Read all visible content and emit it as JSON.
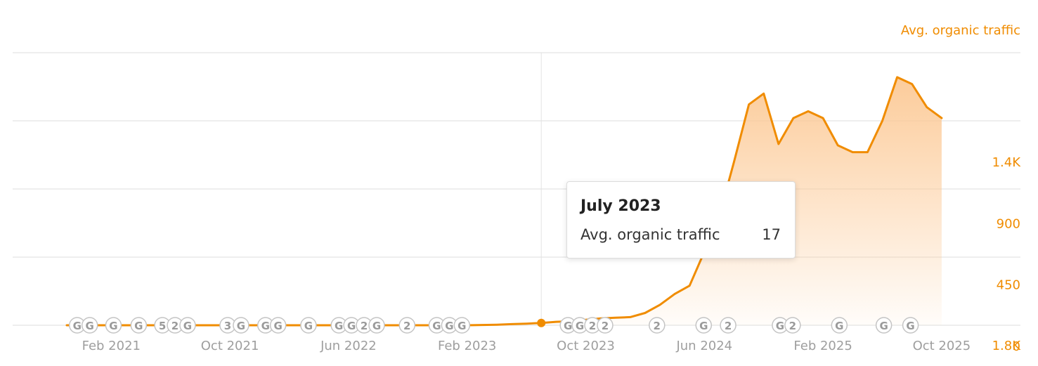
{
  "chart_data": {
    "type": "area",
    "series_label": "Avg. organic traffic",
    "x": [
      "Nov 2020",
      "Dec 2020",
      "Jan 2021",
      "Feb 2021",
      "Mar 2021",
      "Apr 2021",
      "May 2021",
      "Jun 2021",
      "Jul 2021",
      "Aug 2021",
      "Sep 2021",
      "Oct 2021",
      "Nov 2021",
      "Dec 2021",
      "Jan 2022",
      "Feb 2022",
      "Mar 2022",
      "Apr 2022",
      "May 2022",
      "Jun 2022",
      "Jul 2022",
      "Aug 2022",
      "Sep 2022",
      "Oct 2022",
      "Nov 2022",
      "Dec 2022",
      "Jan 2023",
      "Feb 2023",
      "Mar 2023",
      "Apr 2023",
      "May 2023",
      "Jun 2023",
      "Jul 2023",
      "Aug 2023",
      "Sep 2023",
      "Oct 2023",
      "Nov 2023",
      "Dec 2023",
      "Jan 2024",
      "Feb 2024",
      "Mar 2024",
      "Apr 2024",
      "May 2024",
      "Jun 2024",
      "Jul 2024",
      "Aug 2024",
      "Sep 2024",
      "Oct 2024",
      "Nov 2024",
      "Dec 2024",
      "Jan 2025",
      "Feb 2025",
      "Mar 2025",
      "Apr 2025",
      "May 2025",
      "Jun 2025",
      "Jul 2025",
      "Aug 2025",
      "Sep 2025",
      "Oct 2025"
    ],
    "values": [
      0,
      0,
      0,
      0,
      0,
      0,
      0,
      0,
      0,
      0,
      0,
      0,
      0,
      0,
      0,
      0,
      0,
      0,
      0,
      0,
      0,
      0,
      0,
      0,
      0,
      0,
      0,
      0,
      2,
      4,
      8,
      12,
      17,
      25,
      30,
      40,
      50,
      55,
      60,
      90,
      150,
      230,
      290,
      540,
      800,
      1200,
      1620,
      1700,
      1330,
      1520,
      1570,
      1520,
      1320,
      1270,
      1270,
      1500,
      1820,
      1770,
      1600,
      1520
    ],
    "highlight_index": 32,
    "x_tick_labels": [
      "Feb 2021",
      "Oct 2021",
      "Jun 2022",
      "Feb 2023",
      "Oct 2023",
      "Jun 2024",
      "Feb 2025",
      "Oct 2025"
    ],
    "x_tick_indices": [
      3,
      11,
      19,
      27,
      35,
      43,
      51,
      59
    ],
    "y_ticks": [
      0,
      450,
      900,
      1350,
      1800
    ],
    "y_tick_labels": [
      "0",
      "450",
      "900",
      "1.4K",
      "1.8K"
    ],
    "ylim": [
      0,
      2000
    ],
    "grid": true,
    "y_axis_position": "right",
    "colors": {
      "line": "#f08c00",
      "axis_text": "#f08c00",
      "x_tick_text": "#9e9e9e",
      "grid": "#e8e8e8",
      "fill": "#fcc995"
    },
    "annotations": [
      {
        "index": 0.7,
        "label": "G"
      },
      {
        "index": 1.55,
        "label": "G"
      },
      {
        "index": 3.15,
        "label": "G"
      },
      {
        "index": 4.85,
        "label": "G"
      },
      {
        "index": 6.45,
        "label": "5"
      },
      {
        "index": 7.3,
        "label": "2"
      },
      {
        "index": 8.15,
        "label": "G"
      },
      {
        "index": 10.85,
        "label": "3"
      },
      {
        "index": 11.75,
        "label": "G"
      },
      {
        "index": 13.4,
        "label": "G"
      },
      {
        "index": 14.25,
        "label": "G"
      },
      {
        "index": 16.3,
        "label": "G"
      },
      {
        "index": 18.35,
        "label": "G"
      },
      {
        "index": 19.2,
        "label": "G"
      },
      {
        "index": 20.05,
        "label": "2"
      },
      {
        "index": 20.9,
        "label": "G"
      },
      {
        "index": 22.95,
        "label": "2"
      },
      {
        "index": 24.95,
        "label": "G"
      },
      {
        "index": 25.8,
        "label": "G"
      },
      {
        "index": 26.65,
        "label": "G"
      },
      {
        "index": 33.8,
        "label": "G"
      },
      {
        "index": 34.6,
        "label": "G"
      },
      {
        "index": 35.45,
        "label": "2"
      },
      {
        "index": 36.3,
        "label": "2"
      },
      {
        "index": 39.8,
        "label": "2"
      },
      {
        "index": 42.95,
        "label": "G"
      },
      {
        "index": 44.6,
        "label": "2"
      },
      {
        "index": 48.1,
        "label": "G"
      },
      {
        "index": 48.95,
        "label": "2"
      },
      {
        "index": 52.1,
        "label": "G"
      },
      {
        "index": 55.1,
        "label": "G"
      },
      {
        "index": 56.9,
        "label": "G"
      }
    ]
  },
  "tooltip": {
    "title": "July 2023",
    "label": "Avg. organic traffic",
    "value": "17"
  }
}
